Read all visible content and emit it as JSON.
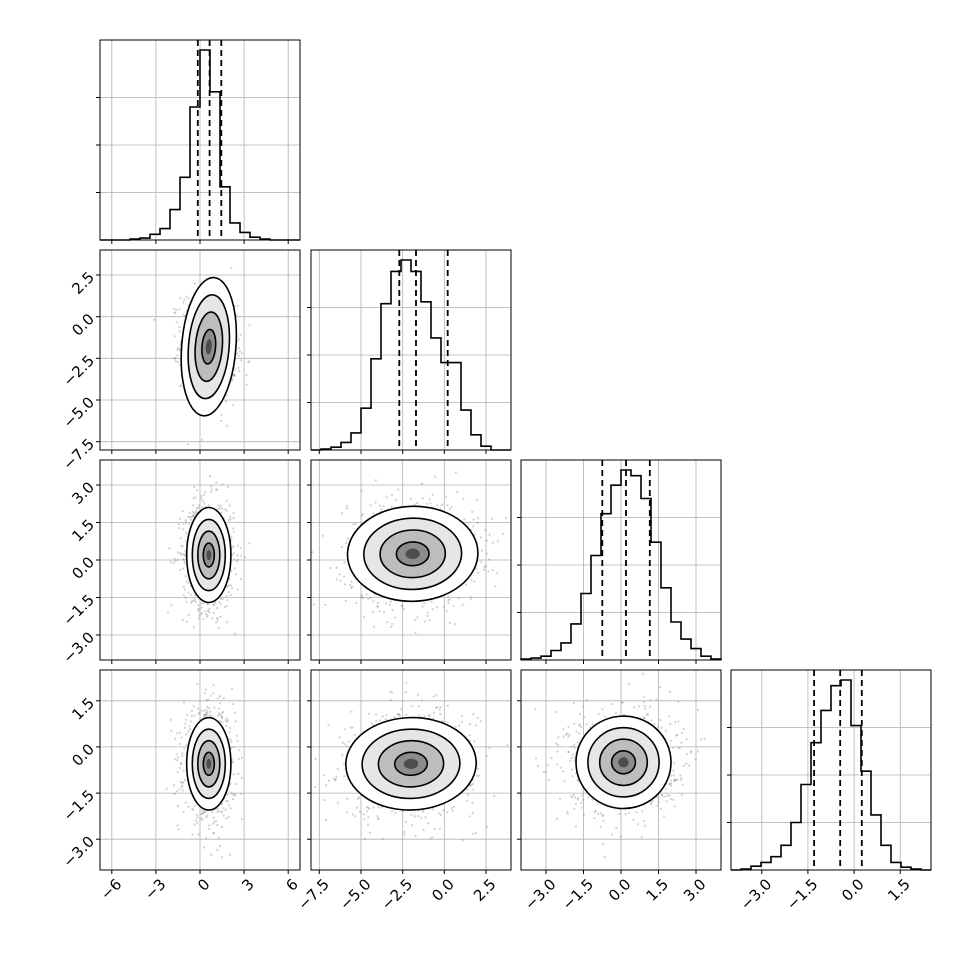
{
  "chart_data": {
    "type": "corner",
    "grid": true,
    "parameters": [
      {
        "index": 0,
        "range": [
          -6.8,
          6.8
        ],
        "ticks": [
          -6,
          -3,
          0,
          3,
          6
        ],
        "tick_labels": [
          "−6",
          "−3",
          "0",
          "3",
          "6"
        ],
        "quantiles": [
          -0.15,
          0.65,
          1.45
        ],
        "hist_edges": [
          -6.8,
          -6.12,
          -5.44,
          -4.76,
          -4.08,
          -3.4,
          -2.72,
          -2.04,
          -1.36,
          -0.68,
          0,
          0.68,
          1.36,
          2.04,
          2.72,
          3.4,
          4.08,
          4.76,
          5.44,
          6.12,
          6.8
        ],
        "hist_counts": [
          0,
          0,
          0,
          0.005,
          0.01,
          0.03,
          0.06,
          0.16,
          0.33,
          0.7,
          1.0,
          0.78,
          0.28,
          0.09,
          0.04,
          0.015,
          0.005,
          0,
          0,
          0
        ]
      },
      {
        "index": 1,
        "range": [
          -8,
          4
        ],
        "ticks": [
          -7.5,
          -5.0,
          -2.5,
          0.0,
          2.5
        ],
        "tick_labels": [
          "−7.5",
          "−5.0",
          "−2.5",
          "0.0",
          "2.5"
        ],
        "quantiles": [
          -2.7,
          -1.7,
          0.2
        ],
        "hist_edges": [
          -8,
          -7.4,
          -6.8,
          -6.2,
          -5.6,
          -5,
          -4.4,
          -3.8,
          -3.2,
          -2.6,
          -2,
          -1.4,
          -0.8,
          -0.2,
          0.4,
          1,
          1.6,
          2.2,
          2.8,
          3.4,
          4
        ],
        "hist_counts": [
          0,
          0.005,
          0.015,
          0.04,
          0.09,
          0.22,
          0.48,
          0.77,
          0.94,
          1.0,
          0.94,
          0.78,
          0.59,
          0.46,
          0.46,
          0.21,
          0.08,
          0.02,
          0,
          0
        ]
      },
      {
        "index": 2,
        "range": [
          -4,
          4
        ],
        "ticks": [
          -3.0,
          -1.5,
          0.0,
          1.5,
          3.0
        ],
        "tick_labels": [
          "−3.0",
          "−1.5",
          "0.0",
          "1.5",
          "3.0"
        ],
        "quantiles": [
          -0.75,
          0.2,
          1.15
        ],
        "hist_edges": [
          -4,
          -3.6,
          -3.2,
          -2.8,
          -2.4,
          -2,
          -1.6,
          -1.2,
          -0.8,
          -0.4,
          0,
          0.4,
          0.8,
          1.2,
          1.6,
          2,
          2.4,
          2.8,
          3.2,
          3.6,
          4
        ],
        "hist_counts": [
          0.005,
          0.01,
          0.02,
          0.05,
          0.09,
          0.19,
          0.35,
          0.55,
          0.77,
          0.92,
          1.0,
          0.97,
          0.85,
          0.62,
          0.38,
          0.2,
          0.11,
          0.06,
          0.02,
          0.005
        ]
      },
      {
        "index": 3,
        "range": [
          -4,
          2.5
        ],
        "ticks": [
          -3.0,
          -1.5,
          0.0,
          1.5
        ],
        "tick_labels": [
          "−3.0",
          "−1.5",
          "0.0",
          "1.5"
        ],
        "quantiles": [
          -1.3,
          -0.45,
          0.25
        ],
        "hist_edges": [
          -4,
          -3.675,
          -3.35,
          -3.025,
          -2.7,
          -2.375,
          -2.05,
          -1.725,
          -1.4,
          -1.075,
          -0.75,
          -0.425,
          -0.1,
          0.225,
          0.55,
          0.875,
          1.2,
          1.525,
          1.85,
          2.175,
          2.5
        ],
        "hist_counts": [
          0,
          0.005,
          0.02,
          0.04,
          0.07,
          0.13,
          0.25,
          0.45,
          0.67,
          0.84,
          0.97,
          1.0,
          0.76,
          0.52,
          0.29,
          0.13,
          0.04,
          0.015,
          0.005,
          0
        ]
      }
    ],
    "pairs": [
      {
        "row": 1,
        "col": 0,
        "center": [
          0.6,
          -1.8
        ],
        "sigma": [
          0.8,
          1.3
        ],
        "rho": -0.15,
        "ellipse_scale": [
          1.15,
          1.6
        ]
      },
      {
        "row": 2,
        "col": 0,
        "center": [
          0.6,
          0.2
        ],
        "sigma": [
          0.75,
          0.95
        ],
        "rho": 0.0,
        "ellipse_scale": [
          1.0,
          1.0
        ]
      },
      {
        "row": 2,
        "col": 1,
        "center": [
          -1.9,
          0.25
        ],
        "sigma": [
          1.7,
          0.95
        ],
        "rho": 0.05,
        "ellipse_scale": [
          1.15,
          1.0
        ]
      },
      {
        "row": 3,
        "col": 0,
        "center": [
          0.6,
          -0.55
        ],
        "sigma": [
          0.75,
          0.75
        ],
        "rho": 0.0,
        "ellipse_scale": [
          1.0,
          1.0
        ]
      },
      {
        "row": 3,
        "col": 1,
        "center": [
          -2.0,
          -0.55
        ],
        "sigma": [
          1.7,
          0.75
        ],
        "rho": 0.05,
        "ellipse_scale": [
          1.15,
          1.0
        ]
      },
      {
        "row": 3,
        "col": 2,
        "center": [
          0.1,
          -0.5
        ],
        "sigma": [
          0.95,
          0.75
        ],
        "rho": 0.05,
        "ellipse_scale": [
          1.0,
          1.0
        ]
      }
    ],
    "contour_levels_sigma": [
      0.5,
      1.0,
      1.5,
      2.0
    ]
  }
}
